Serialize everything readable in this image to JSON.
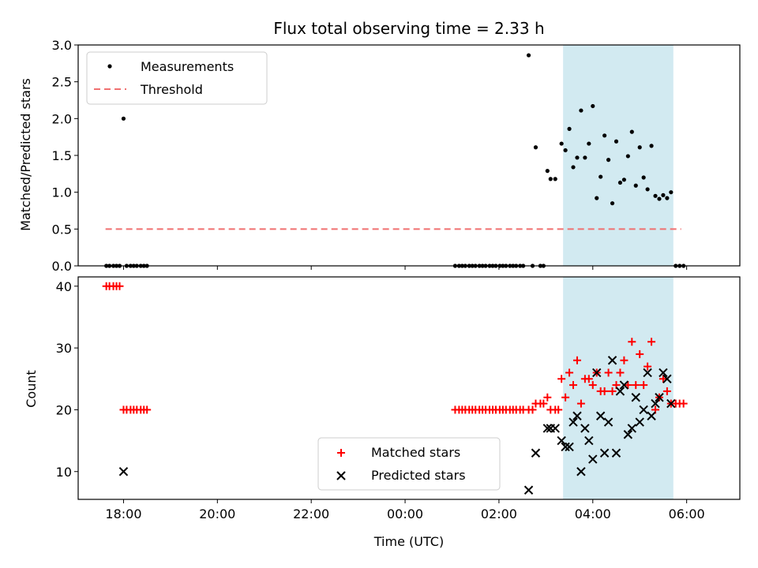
{
  "title": "Flux total observing time = 2.33 h",
  "chart_data": [
    {
      "type": "scatter",
      "ylabel": "Matched/Predicted stars",
      "xlim": [
        "17:02",
        "07:08"
      ],
      "ylim": [
        0,
        3.0
      ],
      "yticks": [
        "0.0",
        "0.5",
        "1.0",
        "1.5",
        "2.0",
        "2.5",
        "3.0"
      ],
      "legend": {
        "position": "top-left",
        "entries": [
          "Measurements",
          "Threshold"
        ]
      },
      "shaded_interval": {
        "from": "03:22",
        "to": "05:43",
        "color": "#add8e6"
      },
      "threshold": {
        "value": 0.5,
        "from": "17:37",
        "to": "05:53",
        "color": "#f07070"
      },
      "series": [
        {
          "name": "Measurements",
          "color": "#000000",
          "points": [
            [
              "17:38",
              0
            ],
            [
              "17:42",
              0
            ],
            [
              "17:47",
              0
            ],
            [
              "17:51",
              0
            ],
            [
              "17:55",
              0
            ],
            [
              "18:00",
              2.0
            ],
            [
              "18:04",
              0
            ],
            [
              "18:09",
              0
            ],
            [
              "18:13",
              0
            ],
            [
              "18:17",
              0
            ],
            [
              "18:22",
              0
            ],
            [
              "18:26",
              0
            ],
            [
              "18:30",
              0
            ],
            [
              "01:04",
              0
            ],
            [
              "01:09",
              0
            ],
            [
              "01:13",
              0
            ],
            [
              "01:17",
              0
            ],
            [
              "01:22",
              0
            ],
            [
              "01:26",
              0
            ],
            [
              "01:30",
              0
            ],
            [
              "01:35",
              0
            ],
            [
              "01:39",
              0
            ],
            [
              "01:43",
              0
            ],
            [
              "01:48",
              0
            ],
            [
              "01:52",
              0
            ],
            [
              "01:56",
              0
            ],
            [
              "02:01",
              0
            ],
            [
              "02:05",
              0
            ],
            [
              "02:09",
              0
            ],
            [
              "02:14",
              0
            ],
            [
              "02:18",
              0
            ],
            [
              "02:22",
              0
            ],
            [
              "02:27",
              0
            ],
            [
              "02:31",
              0
            ],
            [
              "02:38",
              2.86
            ],
            [
              "02:43",
              0
            ],
            [
              "02:47",
              1.61
            ],
            [
              "02:53",
              0
            ],
            [
              "02:57",
              0
            ],
            [
              "03:02",
              1.29
            ],
            [
              "03:06",
              1.18
            ],
            [
              "03:12",
              1.18
            ],
            [
              "03:20",
              1.66
            ],
            [
              "03:25",
              1.57
            ],
            [
              "03:30",
              1.86
            ],
            [
              "03:35",
              1.34
            ],
            [
              "03:40",
              1.47
            ],
            [
              "03:45",
              2.11
            ],
            [
              "03:50",
              1.47
            ],
            [
              "03:55",
              1.66
            ],
            [
              "04:00",
              2.17
            ],
            [
              "04:05",
              0.92
            ],
            [
              "04:10",
              1.21
            ],
            [
              "04:15",
              1.77
            ],
            [
              "04:20",
              1.44
            ],
            [
              "04:25",
              0.85
            ],
            [
              "04:30",
              1.69
            ],
            [
              "04:35",
              1.13
            ],
            [
              "04:40",
              1.17
            ],
            [
              "04:45",
              1.49
            ],
            [
              "04:50",
              1.82
            ],
            [
              "04:55",
              1.09
            ],
            [
              "05:00",
              1.61
            ],
            [
              "05:05",
              1.2
            ],
            [
              "05:10",
              1.04
            ],
            [
              "05:15",
              1.63
            ],
            [
              "05:20",
              0.95
            ],
            [
              "05:25",
              0.91
            ],
            [
              "05:30",
              0.96
            ],
            [
              "05:35",
              0.92
            ],
            [
              "05:40",
              1.0
            ],
            [
              "05:46",
              0
            ],
            [
              "05:51",
              0
            ],
            [
              "05:56",
              0
            ]
          ]
        }
      ]
    },
    {
      "type": "scatter",
      "xlabel": "Time (UTC)",
      "ylabel": "Count",
      "xlim": [
        "17:02",
        "07:08"
      ],
      "ylim": [
        5.5,
        41.5
      ],
      "yticks": [
        "10",
        "20",
        "30",
        "40"
      ],
      "xticks": [
        "18:00",
        "20:00",
        "22:00",
        "00:00",
        "02:00",
        "04:00",
        "06:00"
      ],
      "legend": {
        "position": "bottom-center",
        "entries": [
          "Matched stars",
          "Predicted stars"
        ]
      },
      "shaded_interval": {
        "from": "03:22",
        "to": "05:43",
        "color": "#add8e6"
      },
      "series": [
        {
          "name": "Matched stars",
          "marker": "+",
          "color": "#ff0000",
          "points": [
            [
              "17:38",
              40
            ],
            [
              "17:42",
              40
            ],
            [
              "17:47",
              40
            ],
            [
              "17:51",
              40
            ],
            [
              "17:55",
              40
            ],
            [
              "18:00",
              20
            ],
            [
              "18:04",
              20
            ],
            [
              "18:09",
              20
            ],
            [
              "18:13",
              20
            ],
            [
              "18:17",
              20
            ],
            [
              "18:22",
              20
            ],
            [
              "18:26",
              20
            ],
            [
              "18:30",
              20
            ],
            [
              "01:04",
              20
            ],
            [
              "01:09",
              20
            ],
            [
              "01:13",
              20
            ],
            [
              "01:17",
              20
            ],
            [
              "01:22",
              20
            ],
            [
              "01:26",
              20
            ],
            [
              "01:30",
              20
            ],
            [
              "01:35",
              20
            ],
            [
              "01:39",
              20
            ],
            [
              "01:43",
              20
            ],
            [
              "01:48",
              20
            ],
            [
              "01:52",
              20
            ],
            [
              "01:56",
              20
            ],
            [
              "02:01",
              20
            ],
            [
              "02:05",
              20
            ],
            [
              "02:09",
              20
            ],
            [
              "02:14",
              20
            ],
            [
              "02:18",
              20
            ],
            [
              "02:22",
              20
            ],
            [
              "02:27",
              20
            ],
            [
              "02:31",
              20
            ],
            [
              "02:38",
              20
            ],
            [
              "02:43",
              20
            ],
            [
              "02:47",
              21
            ],
            [
              "02:53",
              21
            ],
            [
              "02:57",
              21
            ],
            [
              "03:02",
              22
            ],
            [
              "03:06",
              20
            ],
            [
              "03:12",
              20
            ],
            [
              "03:16",
              20
            ],
            [
              "03:20",
              25
            ],
            [
              "03:25",
              22
            ],
            [
              "03:30",
              26
            ],
            [
              "03:35",
              24
            ],
            [
              "03:40",
              28
            ],
            [
              "03:45",
              21
            ],
            [
              "03:50",
              25
            ],
            [
              "03:55",
              25
            ],
            [
              "04:00",
              24
            ],
            [
              "04:05",
              26
            ],
            [
              "04:10",
              23
            ],
            [
              "04:15",
              23
            ],
            [
              "04:20",
              26
            ],
            [
              "04:25",
              23
            ],
            [
              "04:30",
              24
            ],
            [
              "04:35",
              26
            ],
            [
              "04:40",
              28
            ],
            [
              "04:45",
              24
            ],
            [
              "04:50",
              31
            ],
            [
              "04:55",
              24
            ],
            [
              "05:00",
              29
            ],
            [
              "05:05",
              24
            ],
            [
              "05:10",
              27
            ],
            [
              "05:15",
              31
            ],
            [
              "05:20",
              20
            ],
            [
              "05:25",
              22
            ],
            [
              "05:30",
              25
            ],
            [
              "05:35",
              23
            ],
            [
              "05:40",
              21
            ],
            [
              "05:46",
              21
            ],
            [
              "05:51",
              21
            ],
            [
              "05:56",
              21
            ]
          ]
        },
        {
          "name": "Predicted stars",
          "marker": "x",
          "color": "#000000",
          "points": [
            [
              "18:00",
              10
            ],
            [
              "02:38",
              7
            ],
            [
              "02:47",
              13
            ],
            [
              "03:02",
              17
            ],
            [
              "03:06",
              17
            ],
            [
              "03:12",
              17
            ],
            [
              "03:20",
              15
            ],
            [
              "03:25",
              14
            ],
            [
              "03:30",
              14
            ],
            [
              "03:35",
              18
            ],
            [
              "03:40",
              19
            ],
            [
              "03:45",
              10
            ],
            [
              "03:50",
              17
            ],
            [
              "03:55",
              15
            ],
            [
              "04:00",
              12
            ],
            [
              "04:05",
              26
            ],
            [
              "04:10",
              19
            ],
            [
              "04:15",
              13
            ],
            [
              "04:20",
              18
            ],
            [
              "04:25",
              28
            ],
            [
              "04:30",
              13
            ],
            [
              "04:35",
              23
            ],
            [
              "04:40",
              24
            ],
            [
              "04:45",
              16
            ],
            [
              "04:50",
              17
            ],
            [
              "04:55",
              22
            ],
            [
              "05:00",
              18
            ],
            [
              "05:05",
              20
            ],
            [
              "05:10",
              26
            ],
            [
              "05:15",
              19
            ],
            [
              "05:20",
              21
            ],
            [
              "05:25",
              22
            ],
            [
              "05:30",
              26
            ],
            [
              "05:35",
              25
            ],
            [
              "05:40",
              21
            ]
          ]
        }
      ]
    }
  ]
}
